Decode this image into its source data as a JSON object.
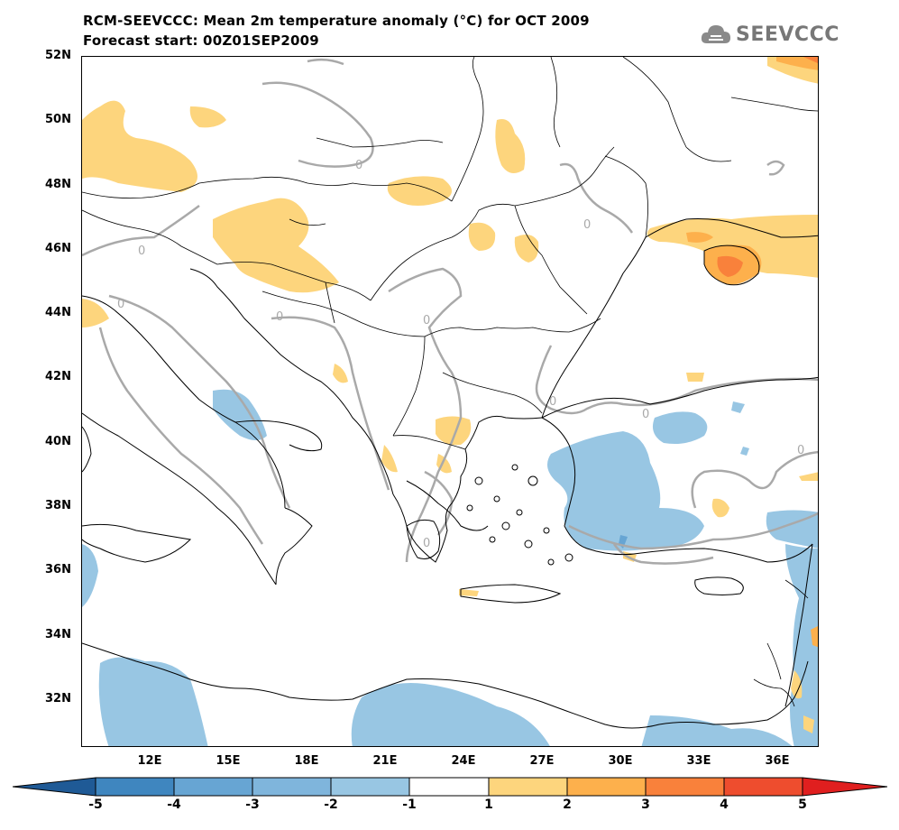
{
  "title_line1": "RCM-SEEVCCC: Mean 2m temperature anomaly (°C) for OCT 2009",
  "title_line2": "Forecast start: 00Z01SEP2009",
  "logo_text": "SEEVCCC",
  "lat_labels": [
    "52N",
    "50N",
    "48N",
    "46N",
    "44N",
    "42N",
    "40N",
    "38N",
    "36N",
    "34N",
    "32N"
  ],
  "lon_labels": [
    "12E",
    "15E",
    "18E",
    "21E",
    "24E",
    "27E",
    "30E",
    "33E",
    "36E"
  ],
  "contour_label": "0",
  "colorbar": {
    "labels": [
      "-5",
      "-4",
      "-3",
      "-2",
      "-1",
      "1",
      "2",
      "3",
      "4",
      "5"
    ],
    "colors": [
      "#1f5a96",
      "#3f86bf",
      "#67a5d3",
      "#98c6e3",
      "#ffffff",
      "#fdd57d",
      "#fdb04c",
      "#f9813b",
      "#ee4d2e",
      "#e01f1f"
    ]
  },
  "colors": {
    "warm1": "#fdd57d",
    "warm2": "#fdb04c",
    "warm3": "#f9813b",
    "cool1": "#98c6e3",
    "cool2": "#67a5d3",
    "contour": "#a9a9a9"
  }
}
